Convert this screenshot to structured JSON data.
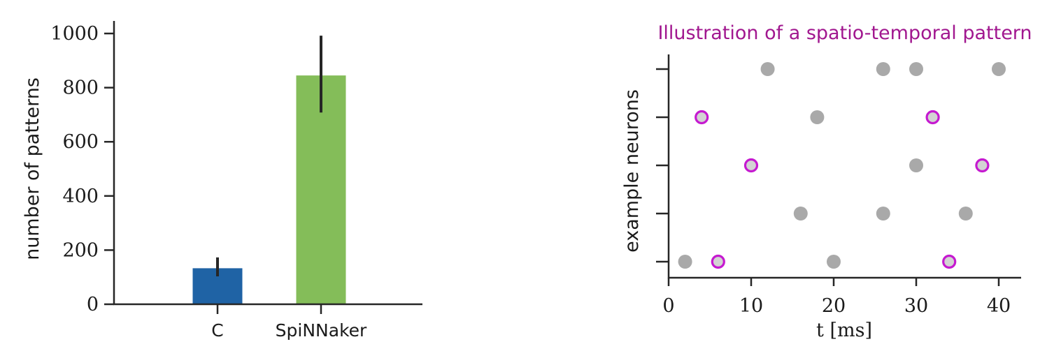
{
  "chart_data": [
    {
      "type": "bar",
      "title": "",
      "xlabel": "",
      "ylabel": "number of patterns",
      "categories": [
        "C",
        "SpiNNaker"
      ],
      "values": [
        133,
        845
      ],
      "error_low": [
        103,
        708
      ],
      "error_high": [
        173,
        992
      ],
      "colors": [
        "#1f63a5",
        "#84bd59"
      ],
      "ylim": [
        0,
        1000
      ],
      "yticks": [
        0,
        200,
        400,
        600,
        800,
        1000
      ],
      "grid": false,
      "legend": "none"
    },
    {
      "type": "scatter",
      "title": "Illustration of a spatio-temporal pattern",
      "title_color": "#a1178f",
      "xlabel": "t [ms]",
      "ylabel": "example neurons",
      "xlim": [
        0,
        42.5
      ],
      "xticks": [
        0,
        10,
        20,
        30,
        40
      ],
      "neurons": 5,
      "grid": false,
      "legend": "none",
      "series": [
        {
          "style": "background-spike",
          "color": "#a9a9a9",
          "points": [
            {
              "t": 2,
              "neuron": 1
            },
            {
              "t": 20,
              "neuron": 1
            },
            {
              "t": 16,
              "neuron": 2
            },
            {
              "t": 26,
              "neuron": 2
            },
            {
              "t": 36,
              "neuron": 2
            },
            {
              "t": 30,
              "neuron": 3
            },
            {
              "t": 18,
              "neuron": 4
            },
            {
              "t": 12,
              "neuron": 5
            },
            {
              "t": 26,
              "neuron": 5
            },
            {
              "t": 30,
              "neuron": 5
            },
            {
              "t": 40,
              "neuron": 5
            }
          ]
        },
        {
          "style": "pattern-spike",
          "color": "#c51ad0",
          "fill": "#d3d3d3",
          "points": [
            {
              "t": 6,
              "neuron": 1
            },
            {
              "t": 34,
              "neuron": 1
            },
            {
              "t": 10,
              "neuron": 3
            },
            {
              "t": 38,
              "neuron": 3
            },
            {
              "t": 4,
              "neuron": 4
            },
            {
              "t": 32,
              "neuron": 4
            }
          ]
        }
      ]
    }
  ]
}
